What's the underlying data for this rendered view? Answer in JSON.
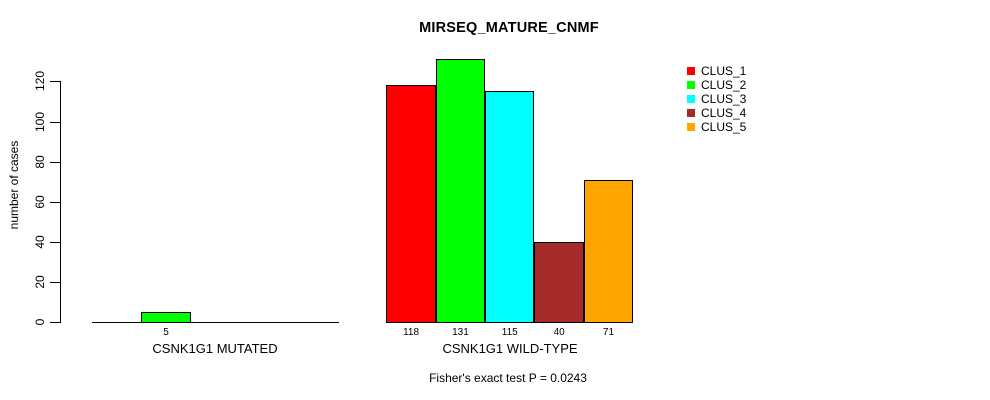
{
  "chart_data": {
    "type": "bar",
    "title": "MIRSEQ_MATURE_CNMF",
    "ylabel": "number of cases",
    "xlabel": "",
    "yticks": [
      0,
      20,
      40,
      60,
      80,
      100,
      120
    ],
    "ylim": [
      0,
      131
    ],
    "grid": false,
    "legend_position": "top-right",
    "axis_color": "#000000",
    "bar_border_color": "#000000",
    "categories": [
      "CSNK1G1 MUTATED",
      "CSNK1G1 WILD-TYPE"
    ],
    "series": [
      {
        "name": "CLUS_1",
        "color": "#FF0000",
        "values": [
          0,
          118
        ]
      },
      {
        "name": "CLUS_2",
        "color": "#00FF00",
        "values": [
          5,
          131
        ]
      },
      {
        "name": "CLUS_3",
        "color": "#00FFFF",
        "values": [
          0,
          115
        ]
      },
      {
        "name": "CLUS_4",
        "color": "#A52A2A",
        "values": [
          0,
          40
        ]
      },
      {
        "name": "CLUS_5",
        "color": "#FFA500",
        "values": [
          0,
          71
        ]
      }
    ],
    "value_labels": {
      "show": true,
      "hide_zero": true
    },
    "annotation": "Fisher's exact test P = 0.0243"
  }
}
